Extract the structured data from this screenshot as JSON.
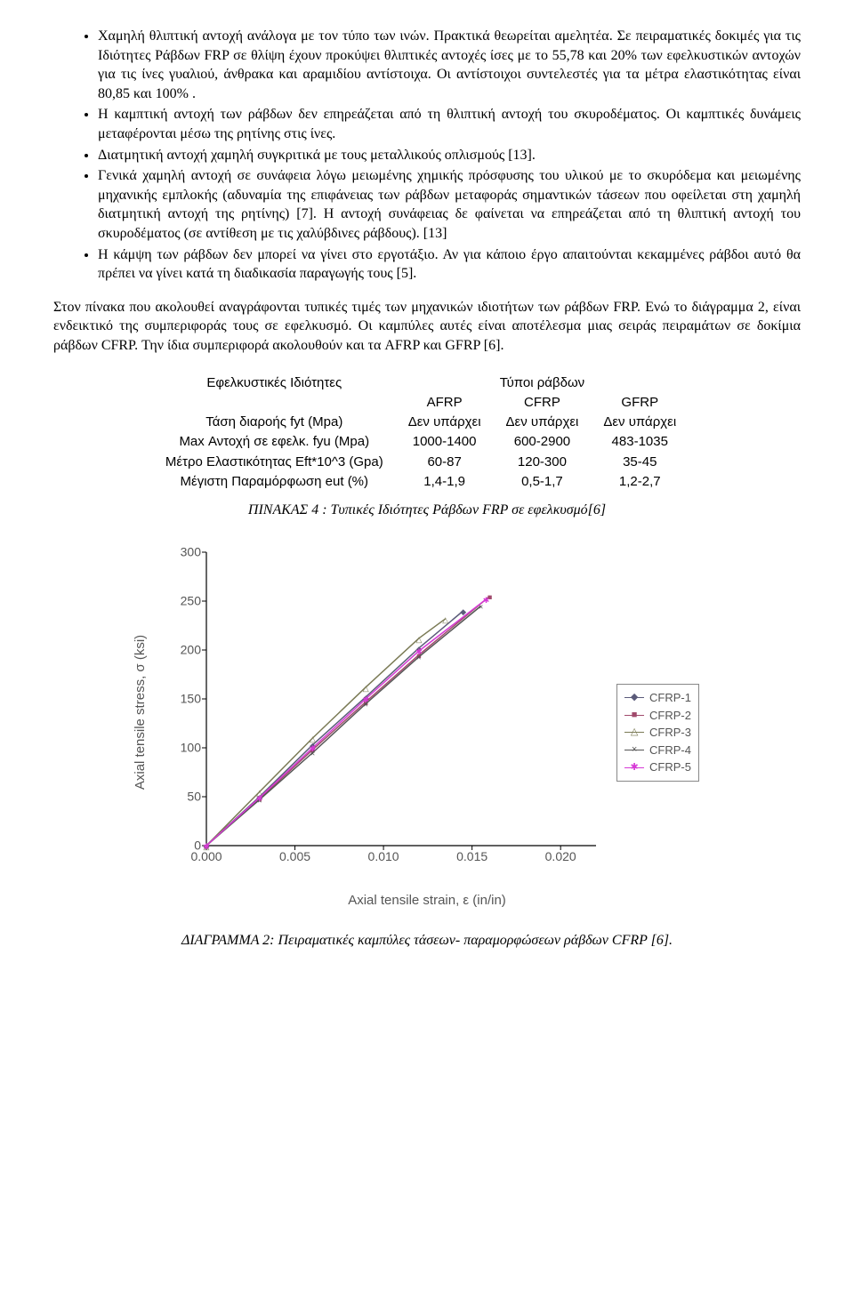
{
  "bullets": [
    "Χαμηλή θλιπτική αντοχή ανάλογα με τον τύπο των ινών. Πρακτικά θεωρείται αμελητέα. Σε πειραματικές δοκιμές για τις Ιδιότητες Ράβδων FRP σε θλίψη έχουν προκύψει θλιπτικές αντοχές ίσες με το 55,78 και 20% των εφελκυστικών αντοχών για τις ίνες γυαλιού, άνθρακα και αραμιδίου αντίστοιχα. Οι αντίστοιχοι συντελεστές για τα μέτρα ελαστικότητας είναι 80,85 και 100% .",
    "Η καμπτική αντοχή των ράβδων δεν επηρεάζεται από τη θλιπτική αντοχή του σκυροδέματος. Οι καμπτικές δυνάμεις μεταφέρονται μέσω της ρητίνης στις ίνες.",
    "Διατμητική αντοχή χαμηλή συγκριτικά με τους μεταλλικούς οπλισμούς [13].",
    "Γενικά χαμηλή αντοχή σε συνάφεια λόγω μειωμένης χημικής πρόσφυσης του υλικού με το σκυρόδεμα και μειωμένης μηχανικής εμπλοκής (αδυναμία της επιφάνειας των ράβδων μεταφοράς σημαντικών τάσεων που οφείλεται στη χαμηλή διατμητική αντοχή της ρητίνης) [7]. Η αντοχή συνάφειας δε φαίνεται να επηρεάζεται από τη θλιπτική αντοχή του σκυροδέματος (σε αντίθεση με τις χαλύβδινες ράβδους).  [13]",
    "Η κάμψη των ράβδων δεν μπορεί να γίνει στο εργοτάξιο. Αν για κάποιο έργο απαιτούνται κεκαμμένες ράβδοι αυτό θα πρέπει να γίνει κατά τη διαδικασία παραγωγής τους [5]."
  ],
  "paragraph": "Στον πίνακα που ακολουθεί αναγράφονται τυπικές τιμές των μηχανικών ιδιοτήτων των ράβδων FRP. Ενώ το διάγραμμα 2, είναι ενδεικτικό της συμπεριφοράς τους σε εφελκυσμό. Οι καμπύλες αυτές είναι αποτέλεσμα μιας σειράς πειραμάτων σε δοκίμια ράβδων CFRP. Την ίδια συμπεριφορά ακολουθούν και τα AFRP και GFRP [6].",
  "table": {
    "header_left": "Εφελκυστικές Ιδιότητες",
    "header_group": "Τύποι  ράβδων",
    "col_headers": [
      "AFRP",
      "CFRP",
      "GFRP"
    ],
    "rows": [
      {
        "label": "Τάση  διαροής  fyt (Mpa)",
        "vals": [
          "Δεν υπάρχει",
          "Δεν υπάρχει",
          "Δεν υπάρχει"
        ]
      },
      {
        "label": "Max Αντοχή σε εφελκ. fyu (Mpa)",
        "vals": [
          "1000-1400",
          "600-2900",
          "483-1035"
        ]
      },
      {
        "label": "Μέτρο Ελαστικότητας  Eft*10^3 (Gpa)",
        "vals": [
          "60-87",
          "120-300",
          "35-45"
        ]
      },
      {
        "label": "Μέγιστη Παραμόρφωση eut (%)",
        "vals": [
          "1,4-1,9",
          "0,5-1,7",
          "1,2-2,7"
        ]
      }
    ]
  },
  "table_caption": "ΠΙΝΑΚΑΣ 4 : Τυπικές Ιδιότητες Ράβδων FRP σε εφελκυσμό[6]",
  "chart": {
    "type": "line",
    "ylabel": "Axial tensile stress, σ (ksi)",
    "xlabel": "Axial tensile strain, ε (in/in)",
    "xlim": [
      0,
      0.022
    ],
    "ylim": [
      0,
      300
    ],
    "xticks": [
      0.0,
      0.005,
      0.01,
      0.015,
      0.02
    ],
    "xtick_labels": [
      "0.000",
      "0.005",
      "0.010",
      "0.015",
      "0.020"
    ],
    "yticks": [
      0,
      50,
      100,
      150,
      200,
      250,
      300
    ],
    "background_color": "#ffffff",
    "tick_color": "#555555",
    "axis_color": "#000000",
    "series": [
      {
        "name": "CFRP-1",
        "color": "#5b5b7a",
        "marker": "◆",
        "data": [
          [
            0,
            0
          ],
          [
            0.003,
            50
          ],
          [
            0.006,
            103
          ],
          [
            0.009,
            152
          ],
          [
            0.012,
            202
          ],
          [
            0.0145,
            240
          ]
        ]
      },
      {
        "name": "CFRP-2",
        "color": "#a04a6c",
        "marker": "■",
        "data": [
          [
            0,
            0
          ],
          [
            0.003,
            48
          ],
          [
            0.006,
            98
          ],
          [
            0.009,
            147
          ],
          [
            0.012,
            195
          ],
          [
            0.016,
            255
          ]
        ]
      },
      {
        "name": "CFRP-3",
        "color": "#7a7a55",
        "marker": "△",
        "data": [
          [
            0,
            0
          ],
          [
            0.003,
            55
          ],
          [
            0.006,
            110
          ],
          [
            0.009,
            162
          ],
          [
            0.012,
            212
          ],
          [
            0.0135,
            232
          ]
        ]
      },
      {
        "name": "CFRP-4",
        "color": "#555555",
        "marker": "×",
        "data": [
          [
            0,
            0
          ],
          [
            0.003,
            47
          ],
          [
            0.006,
            95
          ],
          [
            0.009,
            145
          ],
          [
            0.012,
            193
          ],
          [
            0.0155,
            245
          ]
        ]
      },
      {
        "name": "CFRP-5",
        "color": "#d63ad6",
        "marker": "✱",
        "data": [
          [
            0,
            0
          ],
          [
            0.003,
            49
          ],
          [
            0.006,
            100
          ],
          [
            0.009,
            150
          ],
          [
            0.012,
            199
          ],
          [
            0.0158,
            252
          ]
        ]
      }
    ],
    "legend_border": "#888888"
  },
  "chart_caption": "ΔΙΑΓΡΑΜΜΑ 2: Πειραματικές καμπύλες τάσεων- παραμορφώσεων ράβδων CFRP [6]."
}
